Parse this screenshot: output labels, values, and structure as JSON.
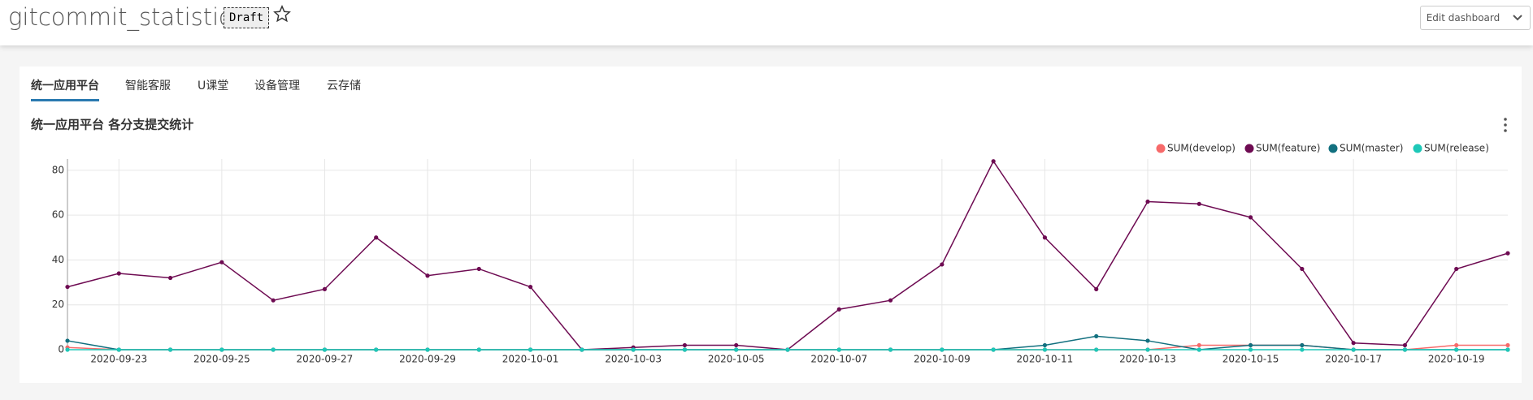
{
  "header": {
    "title": "gitcommit_statistics",
    "badge": "Draft",
    "button": "Edit dashboard"
  },
  "tabs": [
    "统一应用平台",
    "智能客服",
    "U课堂",
    "设备管理",
    "云存储"
  ],
  "chart_data": {
    "type": "line",
    "title": "统一应用平台 各分支提交统计",
    "x": [
      "2020-09-22",
      "2020-09-23",
      "2020-09-24",
      "2020-09-25",
      "2020-09-26",
      "2020-09-27",
      "2020-09-28",
      "2020-09-29",
      "2020-09-30",
      "2020-10-01",
      "2020-10-02",
      "2020-10-03",
      "2020-10-04",
      "2020-10-05",
      "2020-10-06",
      "2020-10-07",
      "2020-10-08",
      "2020-10-09",
      "2020-10-10",
      "2020-10-11",
      "2020-10-12",
      "2020-10-13",
      "2020-10-14",
      "2020-10-15",
      "2020-10-16",
      "2020-10-17",
      "2020-10-18",
      "2020-10-19",
      "2020-10-20"
    ],
    "series": [
      {
        "name": "SUM(develop)",
        "color": "#f76a6a",
        "values": [
          1,
          0,
          0,
          0,
          0,
          0,
          0,
          0,
          0,
          0,
          0,
          0,
          0,
          0,
          0,
          0,
          0,
          0,
          0,
          0,
          0,
          0,
          2,
          2,
          2,
          0,
          0,
          2,
          2
        ]
      },
      {
        "name": "SUM(feature)",
        "color": "#6e0b52",
        "values": [
          28,
          34,
          32,
          39,
          22,
          27,
          50,
          33,
          36,
          28,
          0,
          1,
          2,
          2,
          0,
          18,
          22,
          38,
          84,
          50,
          27,
          66,
          65,
          59,
          36,
          3,
          2,
          36,
          43
        ]
      },
      {
        "name": "SUM(master)",
        "color": "#12707f",
        "values": [
          4,
          0,
          0,
          0,
          0,
          0,
          0,
          0,
          0,
          0,
          0,
          0,
          0,
          0,
          0,
          0,
          0,
          0,
          0,
          2,
          6,
          4,
          0,
          2,
          2,
          0,
          0,
          0,
          0
        ]
      },
      {
        "name": "SUM(release)",
        "color": "#1ec8b8",
        "values": [
          0,
          0,
          0,
          0,
          0,
          0,
          0,
          0,
          0,
          0,
          0,
          0,
          0,
          0,
          0,
          0,
          0,
          0,
          0,
          0,
          0,
          0,
          0,
          0,
          0,
          0,
          0,
          0,
          0
        ]
      }
    ],
    "xlim": [
      "2020-09-22",
      "2020-10-20"
    ],
    "xticks": [
      "2020-09-23",
      "2020-09-25",
      "2020-09-27",
      "2020-09-29",
      "2020-10-01",
      "2020-10-03",
      "2020-10-05",
      "2020-10-07",
      "2020-10-09",
      "2020-10-11",
      "2020-10-13",
      "2020-10-15",
      "2020-10-17",
      "2020-10-19"
    ],
    "ylim": [
      0,
      85
    ],
    "yticks": [
      0,
      20,
      40,
      60,
      80
    ],
    "grid": true,
    "legend": "top-right"
  }
}
